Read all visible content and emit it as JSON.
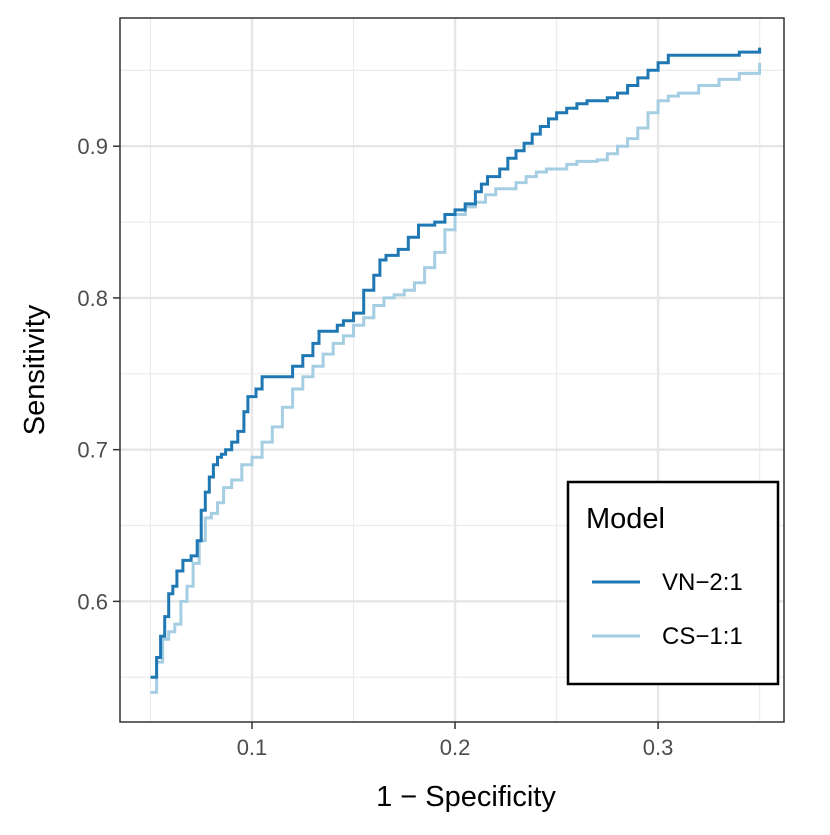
{
  "chart_data": {
    "type": "line",
    "title": "",
    "xlabel": "1 − Specificity",
    "ylabel": "Sensitivity",
    "xlim": [
      0.035,
      0.362
    ],
    "ylim": [
      0.5205,
      0.9845
    ],
    "x_ticks": [
      0.1,
      0.2,
      0.3
    ],
    "x_tick_labels": [
      "0.1",
      "0.2",
      "0.3"
    ],
    "y_ticks": [
      0.6,
      0.7,
      0.8,
      0.9
    ],
    "y_tick_labels": [
      "0.6",
      "0.7",
      "0.8",
      "0.9"
    ],
    "grid": true,
    "legend": {
      "title": "Model",
      "position": "bottom-right"
    },
    "series": [
      {
        "name": "VN−2:1",
        "color": "#1f78b4",
        "x": [
          0.05,
          0.053,
          0.055,
          0.057,
          0.059,
          0.061,
          0.063,
          0.066,
          0.068,
          0.07,
          0.073,
          0.075,
          0.077,
          0.079,
          0.081,
          0.083,
          0.085,
          0.087,
          0.09,
          0.093,
          0.096,
          0.098,
          0.1,
          0.102,
          0.105,
          0.11,
          0.115,
          0.12,
          0.125,
          0.13,
          0.133,
          0.136,
          0.139,
          0.142,
          0.145,
          0.15,
          0.155,
          0.16,
          0.163,
          0.166,
          0.169,
          0.172,
          0.177,
          0.182,
          0.186,
          0.19,
          0.195,
          0.2,
          0.205,
          0.21,
          0.213,
          0.216,
          0.219,
          0.222,
          0.226,
          0.23,
          0.234,
          0.238,
          0.242,
          0.246,
          0.25,
          0.255,
          0.26,
          0.265,
          0.27,
          0.275,
          0.28,
          0.285,
          0.29,
          0.295,
          0.3,
          0.305,
          0.31,
          0.32,
          0.33,
          0.34,
          0.35
        ],
        "y": [
          0.55,
          0.563,
          0.577,
          0.59,
          0.605,
          0.61,
          0.62,
          0.627,
          0.627,
          0.63,
          0.64,
          0.66,
          0.672,
          0.682,
          0.69,
          0.695,
          0.697,
          0.7,
          0.705,
          0.712,
          0.725,
          0.735,
          0.735,
          0.74,
          0.748,
          0.748,
          0.748,
          0.755,
          0.762,
          0.77,
          0.778,
          0.778,
          0.778,
          0.782,
          0.785,
          0.79,
          0.805,
          0.815,
          0.825,
          0.828,
          0.828,
          0.832,
          0.84,
          0.848,
          0.848,
          0.85,
          0.855,
          0.858,
          0.862,
          0.87,
          0.875,
          0.88,
          0.88,
          0.885,
          0.892,
          0.897,
          0.902,
          0.908,
          0.913,
          0.918,
          0.922,
          0.925,
          0.928,
          0.93,
          0.93,
          0.932,
          0.935,
          0.94,
          0.945,
          0.95,
          0.955,
          0.96,
          0.96,
          0.96,
          0.96,
          0.962,
          0.965
        ]
      },
      {
        "name": "CS−1:1",
        "color": "#a6cee3",
        "x": [
          0.05,
          0.053,
          0.056,
          0.059,
          0.062,
          0.065,
          0.068,
          0.071,
          0.074,
          0.077,
          0.08,
          0.083,
          0.086,
          0.09,
          0.095,
          0.1,
          0.105,
          0.11,
          0.115,
          0.12,
          0.125,
          0.13,
          0.135,
          0.14,
          0.145,
          0.15,
          0.155,
          0.16,
          0.165,
          0.17,
          0.175,
          0.18,
          0.185,
          0.19,
          0.195,
          0.2,
          0.205,
          0.21,
          0.215,
          0.22,
          0.225,
          0.23,
          0.235,
          0.24,
          0.245,
          0.25,
          0.255,
          0.26,
          0.265,
          0.27,
          0.275,
          0.28,
          0.285,
          0.29,
          0.295,
          0.3,
          0.305,
          0.31,
          0.32,
          0.33,
          0.34,
          0.35
        ],
        "y": [
          0.54,
          0.56,
          0.575,
          0.58,
          0.585,
          0.6,
          0.61,
          0.625,
          0.64,
          0.655,
          0.658,
          0.665,
          0.675,
          0.68,
          0.69,
          0.695,
          0.705,
          0.715,
          0.728,
          0.74,
          0.748,
          0.755,
          0.763,
          0.77,
          0.775,
          0.782,
          0.787,
          0.795,
          0.8,
          0.802,
          0.805,
          0.81,
          0.82,
          0.83,
          0.845,
          0.855,
          0.86,
          0.863,
          0.868,
          0.872,
          0.872,
          0.876,
          0.88,
          0.883,
          0.885,
          0.885,
          0.888,
          0.89,
          0.89,
          0.891,
          0.895,
          0.9,
          0.905,
          0.912,
          0.922,
          0.93,
          0.933,
          0.935,
          0.94,
          0.944,
          0.948,
          0.955
        ]
      }
    ]
  }
}
